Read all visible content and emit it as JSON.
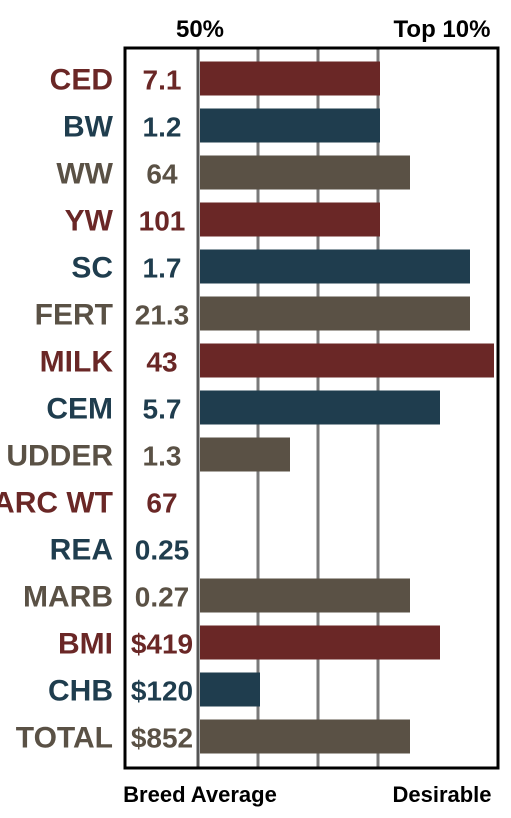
{
  "header": {
    "left_label": "50%",
    "right_label": "Top 10%"
  },
  "footer": {
    "left_label": "Breed Average",
    "right_label": "Desirable"
  },
  "colors": {
    "red": "#6a2726",
    "blue": "#1f3d4e",
    "taupe": "#5a5145",
    "frame": "#000000",
    "grid": "#7a7a7a"
  },
  "chart_data": {
    "type": "bar",
    "orientation": "horizontal",
    "categories": [
      "CED",
      "BW",
      "WW",
      "YW",
      "SC",
      "FERT",
      "MILK",
      "CEM",
      "UDDER",
      "CARC WT",
      "REA",
      "MARB",
      "BMI",
      "CHB",
      "TOTAL"
    ],
    "values_text": [
      "7.1",
      "1.2",
      "64",
      "101",
      "1.7",
      "21.3",
      "43",
      "5.7",
      "1.3",
      "67",
      "0.25",
      "0.27",
      "$419",
      "$120",
      "$852"
    ],
    "bar_levels": [
      3,
      3,
      3.5,
      3,
      4.5,
      4.5,
      4.9,
      4,
      1.5,
      0,
      0,
      3.5,
      4,
      1,
      3.5
    ],
    "bar_colors": [
      "red",
      "blue",
      "taupe",
      "red",
      "blue",
      "taupe",
      "red",
      "blue",
      "taupe",
      "red",
      "blue",
      "taupe",
      "red",
      "blue",
      "taupe"
    ],
    "scale_max": 5,
    "grid": true,
    "grid_lines": 4
  }
}
